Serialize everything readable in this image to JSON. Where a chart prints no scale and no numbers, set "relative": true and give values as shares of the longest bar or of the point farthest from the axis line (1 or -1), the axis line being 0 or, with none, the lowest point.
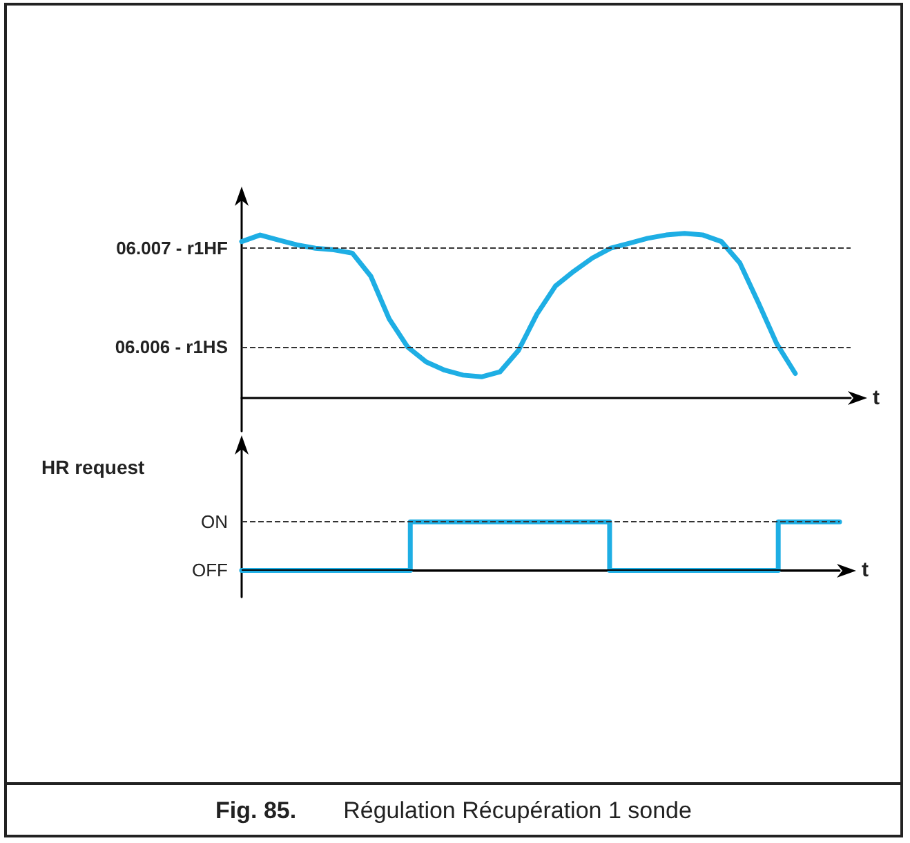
{
  "chart_data": [
    {
      "type": "line",
      "xlabel": "t",
      "relative": true,
      "categories": [
        null,
        null,
        null,
        null,
        null,
        null,
        null,
        null,
        null,
        null,
        null,
        null,
        null,
        null,
        null,
        null,
        null,
        null,
        null,
        null,
        null,
        null,
        null,
        null,
        null,
        null,
        null,
        null,
        null,
        null,
        null,
        null,
        null,
        null
      ],
      "series": [
        {
          "color": "#1eaee4",
          "values": [
            0.95,
            0.99,
            0.96,
            0.93,
            0.91,
            0.9,
            0.88,
            0.74,
            0.48,
            0.31,
            0.22,
            0.17,
            0.14,
            0.13,
            0.16,
            0.29,
            0.51,
            0.68,
            0.77,
            0.85,
            0.91,
            0.94,
            0.97,
            0.99,
            1,
            0.99,
            0.95,
            0.82,
            0.58,
            0.33,
            0.15,
            null,
            null,
            null
          ]
        }
      ],
      "marker": "none",
      "line_style": "solid",
      "ref_lines": [
        {
          "axis": "y",
          "value": 0.91,
          "label": "06.007 - r1HF",
          "line_style": "dashed",
          "color": "#333333"
        },
        {
          "axis": "y",
          "value": 0.31,
          "label": "06.006 - r1HS",
          "line_style": "dashed",
          "color": "#333333"
        }
      ]
    },
    {
      "type": "step",
      "xlabel": "t",
      "ylabel": "HR request",
      "categories": [
        null,
        null,
        null,
        null,
        null,
        null,
        null,
        null,
        null,
        null,
        null,
        null,
        null,
        null,
        null,
        null,
        null,
        null,
        null,
        null,
        null,
        null,
        null,
        null,
        null,
        null,
        null,
        null,
        null,
        null,
        null,
        null,
        null,
        null,
        null,
        null,
        null,
        null,
        null,
        null
      ],
      "series": [
        {
          "color": "#1eaee4",
          "values": [
            0,
            0,
            0,
            0,
            0,
            0,
            0,
            0,
            0,
            0,
            0,
            1,
            1,
            1,
            1,
            1,
            1,
            1,
            1,
            1,
            1,
            1,
            1,
            1,
            0,
            0,
            0,
            0,
            0,
            0,
            0,
            0,
            0,
            0,
            0,
            1,
            1,
            1,
            1,
            1
          ]
        }
      ],
      "relative": true,
      "marker": "none",
      "line_style": "solid",
      "ref_lines": [
        {
          "axis": "y",
          "value": 1,
          "label": "ON",
          "line_style": "dashed",
          "color": "#333333"
        },
        {
          "axis": "y",
          "value": 0,
          "label": "OFF",
          "line_style": "solid",
          "color": "#000000"
        }
      ],
      "annotations": [
        "Fig. 85.",
        "Régulation Récupération 1 sonde"
      ]
    }
  ]
}
